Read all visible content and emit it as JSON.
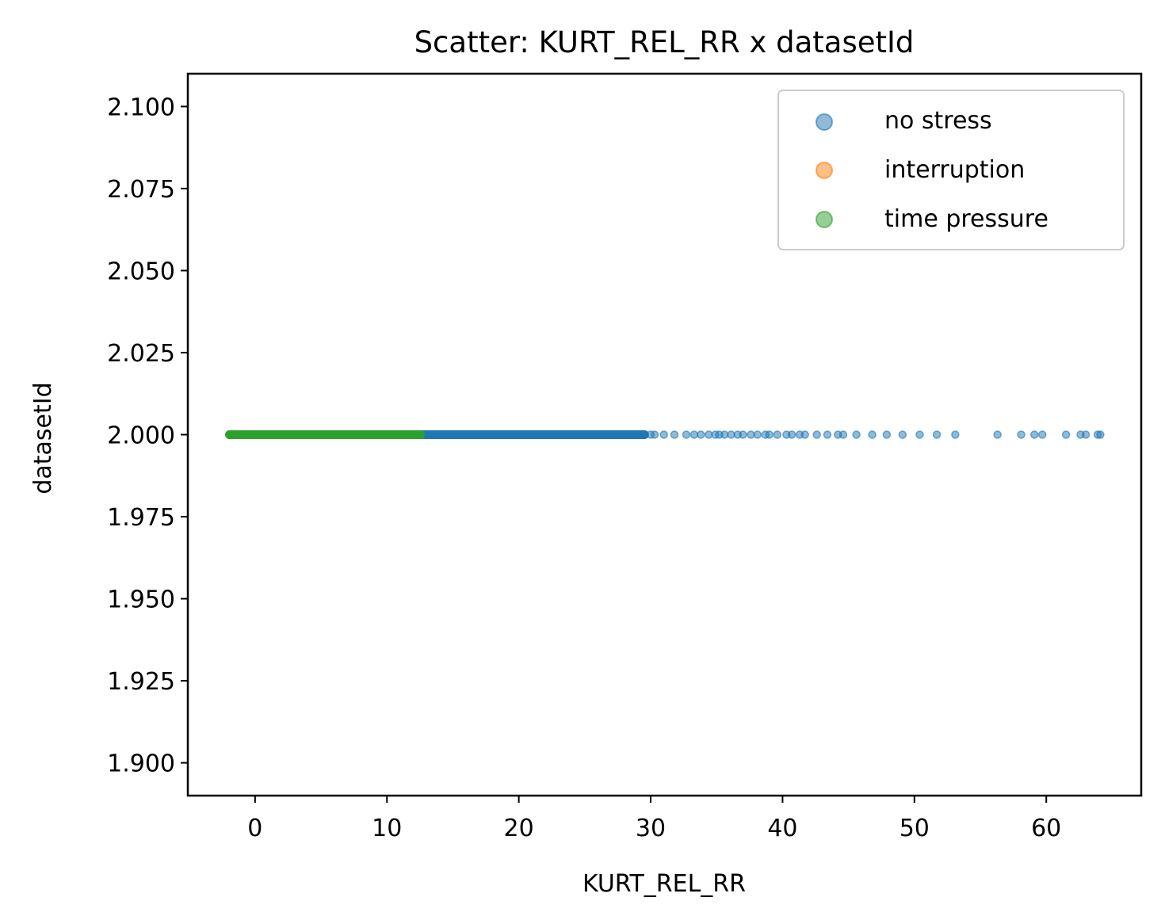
{
  "chart_data": {
    "type": "scatter",
    "title": "Scatter: KURT_REL_RR x datasetId",
    "xlabel": "KURT_REL_RR",
    "ylabel": "datasetId",
    "xlim": [
      -5.1,
      67.2
    ],
    "ylim": [
      1.89,
      2.11
    ],
    "xticks": [
      0,
      10,
      20,
      30,
      40,
      50,
      60
    ],
    "yticks": [
      "1.900",
      "1.925",
      "1.950",
      "1.975",
      "2.000",
      "2.025",
      "2.050",
      "2.075",
      "2.100"
    ],
    "legend_position": "upper right",
    "grid": false,
    "series": [
      {
        "name": "no stress",
        "color": "#1f77b4",
        "dense_range": [
          -2.0,
          29.6
        ],
        "y": 2.0,
        "x": [
          30.0,
          30.3,
          31.0,
          31.8,
          32.7,
          33.3,
          33.8,
          34.4,
          34.9,
          35.2,
          35.6,
          36.1,
          36.6,
          37.0,
          37.6,
          38.1,
          38.7,
          39.0,
          39.6,
          40.3,
          40.7,
          41.3,
          41.7,
          42.6,
          43.4,
          44.2,
          44.6,
          45.6,
          46.8,
          47.9,
          49.1,
          50.4,
          51.7,
          53.1,
          56.3,
          58.1,
          59.1,
          59.7,
          61.5,
          62.6,
          63.0,
          63.9,
          64.1
        ]
      },
      {
        "name": "interruption",
        "color": "#ff7f0e",
        "x": [],
        "y": 2.0
      },
      {
        "name": "time pressure",
        "color": "#2ca02c",
        "dense_range": [
          -2.0,
          12.6
        ],
        "y": 2.0,
        "x": []
      }
    ]
  }
}
